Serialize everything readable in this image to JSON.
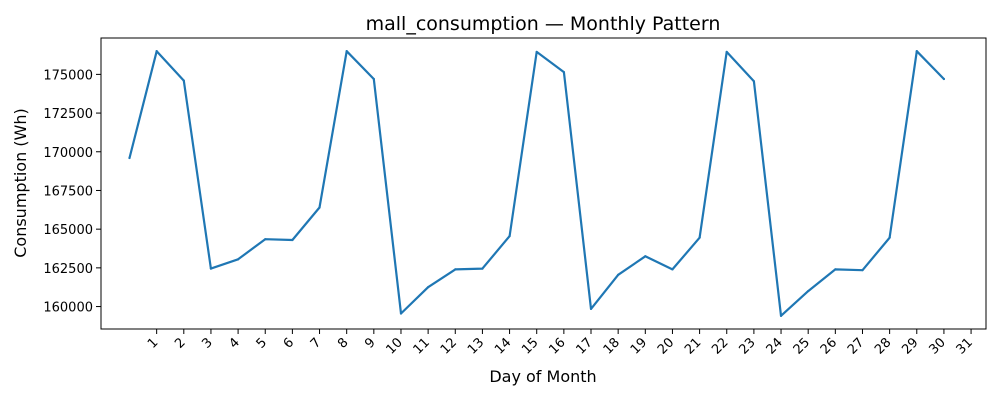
{
  "chart_data": {
    "type": "line",
    "title": "mall_consumption — Monthly Pattern",
    "xlabel": "Day of Month",
    "ylabel": "Consumption (Wh)",
    "x": [
      0,
      1,
      2,
      3,
      4,
      5,
      6,
      7,
      8,
      9,
      10,
      11,
      12,
      13,
      14,
      15,
      16,
      17,
      18,
      19,
      20,
      21,
      22,
      23,
      24,
      25,
      26,
      27,
      28,
      29,
      30
    ],
    "values": [
      169600,
      176500,
      174600,
      162450,
      163050,
      164350,
      164300,
      166400,
      176500,
      174700,
      159550,
      161250,
      162400,
      162450,
      164550,
      176450,
      175150,
      159850,
      162050,
      163250,
      162400,
      164450,
      176450,
      174550,
      159400,
      161000,
      162400,
      162350,
      164450,
      176500,
      174700
    ],
    "xticks": [
      1,
      2,
      3,
      4,
      5,
      6,
      7,
      8,
      9,
      10,
      11,
      12,
      13,
      14,
      15,
      16,
      17,
      18,
      19,
      20,
      21,
      22,
      23,
      24,
      25,
      26,
      27,
      28,
      29,
      30,
      31
    ],
    "xtick_labels": [
      "1",
      "2",
      "3",
      "4",
      "5",
      "6",
      "7",
      "8",
      "9",
      "10",
      "11",
      "12",
      "13",
      "14",
      "15",
      "16",
      "17",
      "18",
      "19",
      "20",
      "21",
      "22",
      "23",
      "24",
      "25",
      "26",
      "27",
      "28",
      "29",
      "30",
      "31"
    ],
    "yticks": [
      160000,
      162500,
      165000,
      167500,
      170000,
      172500,
      175000
    ],
    "ytick_labels": [
      "160000",
      "162500",
      "165000",
      "167500",
      "170000",
      "172500",
      "175000"
    ],
    "xlim": [
      -1.05,
      31.55
    ],
    "ylim": [
      158550,
      177350
    ],
    "grid": false,
    "line_color": "#1f77b4"
  }
}
